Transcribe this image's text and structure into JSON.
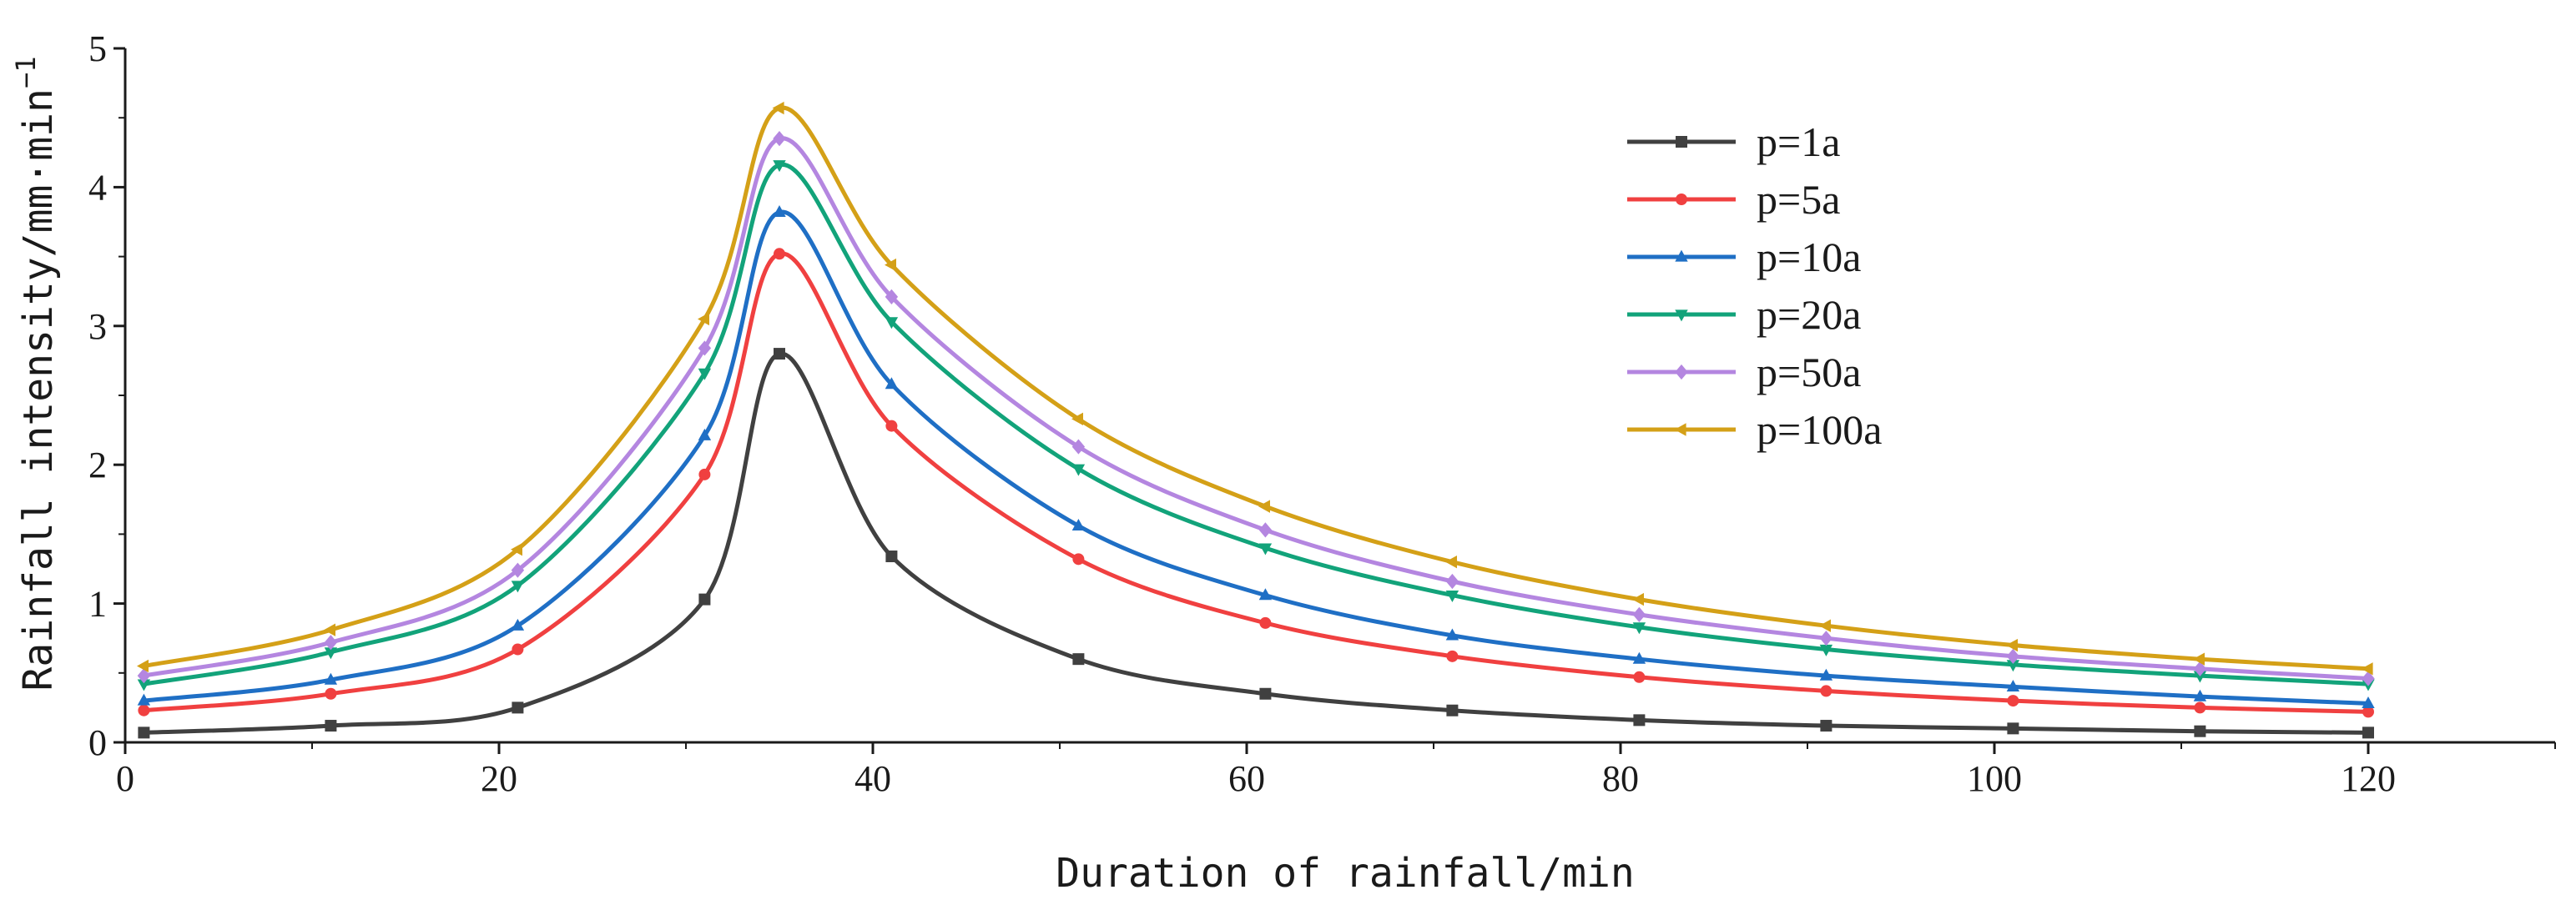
{
  "chart_data": {
    "type": "line",
    "title": "",
    "xlabel": "Duration of rainfall/min",
    "ylabel": "Rainfall intensity/mm·min",
    "ylabel_sup": "−1",
    "xlim": [
      0,
      130
    ],
    "ylim": [
      0,
      5
    ],
    "xticks": [
      0,
      20,
      40,
      60,
      80,
      100,
      120
    ],
    "yticks": [
      0,
      1,
      2,
      3,
      4,
      5
    ],
    "grid": false,
    "legend_position": "top-right",
    "x": [
      1,
      11,
      21,
      31,
      35,
      41,
      51,
      61,
      71,
      81,
      91,
      101,
      111,
      120
    ],
    "series": [
      {
        "name": "p=1a",
        "color": "#404040",
        "marker": "square",
        "values": [
          0.07,
          0.12,
          0.25,
          1.03,
          2.8,
          1.34,
          0.6,
          0.35,
          0.23,
          0.16,
          0.12,
          0.1,
          0.08,
          0.07
        ]
      },
      {
        "name": "p=5a",
        "color": "#f04040",
        "marker": "circle",
        "values": [
          0.23,
          0.35,
          0.67,
          1.93,
          3.52,
          2.28,
          1.32,
          0.86,
          0.62,
          0.47,
          0.37,
          0.3,
          0.25,
          0.22
        ]
      },
      {
        "name": "p=10a",
        "color": "#1f6fc5",
        "marker": "triangle-up",
        "values": [
          0.3,
          0.45,
          0.84,
          2.21,
          3.82,
          2.58,
          1.56,
          1.06,
          0.77,
          0.6,
          0.48,
          0.4,
          0.33,
          0.28
        ]
      },
      {
        "name": "p=20a",
        "color": "#12a37a",
        "marker": "triangle-down",
        "values": [
          0.42,
          0.65,
          1.13,
          2.66,
          4.16,
          3.03,
          1.97,
          1.4,
          1.06,
          0.83,
          0.67,
          0.56,
          0.48,
          0.42
        ]
      },
      {
        "name": "p=50a",
        "color": "#b486e0",
        "marker": "diamond",
        "values": [
          0.48,
          0.72,
          1.24,
          2.84,
          4.35,
          3.21,
          2.13,
          1.53,
          1.16,
          0.92,
          0.75,
          0.62,
          0.53,
          0.46
        ]
      },
      {
        "name": "p=100a",
        "color": "#d4a017",
        "marker": "triangle-left",
        "values": [
          0.55,
          0.81,
          1.39,
          3.05,
          4.57,
          3.44,
          2.33,
          1.7,
          1.3,
          1.03,
          0.84,
          0.7,
          0.6,
          0.53
        ]
      }
    ]
  }
}
